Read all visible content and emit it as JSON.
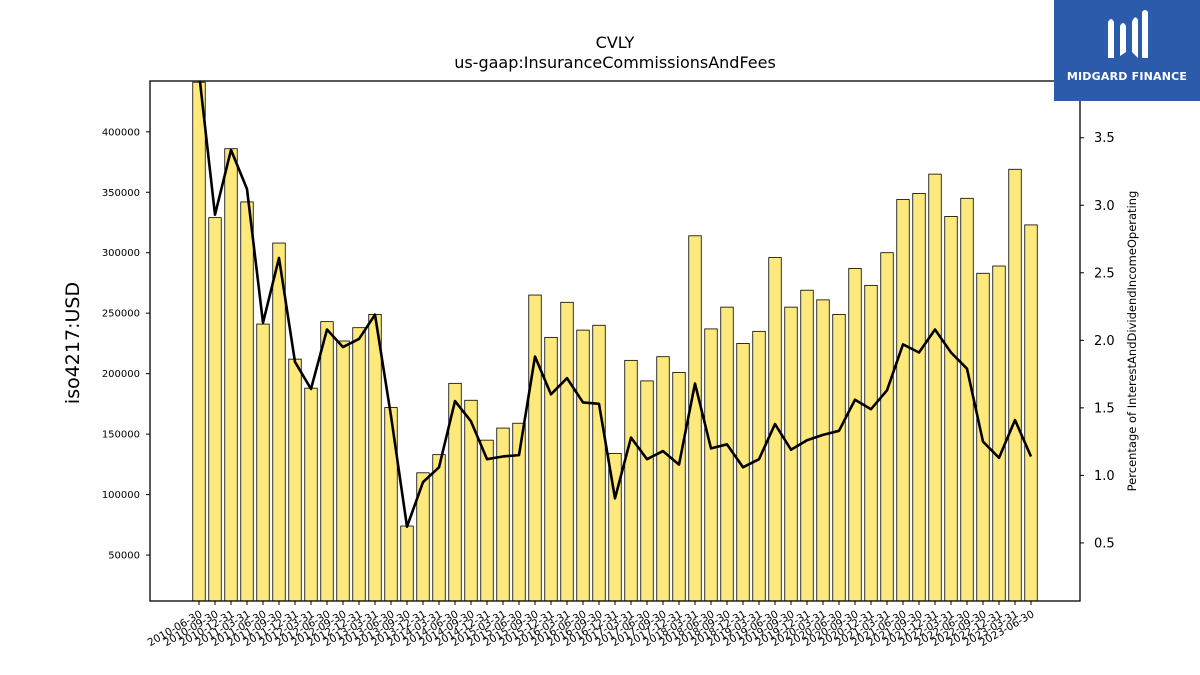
{
  "chart_data": {
    "type": "bar",
    "title": "CVLY",
    "subtitle": "us-gaap:InsuranceCommissionsAndFees",
    "ylabel": "iso4217:USD",
    "y2label": "Percentage of InterestAndDividendIncomeOperating",
    "ylim": [
      12000,
      442000
    ],
    "y2lim": [
      0.07,
      3.92
    ],
    "yticks": [
      50000,
      100000,
      150000,
      200000,
      250000,
      300000,
      350000,
      400000
    ],
    "yticklabels": [
      "50000",
      "100000",
      "150000",
      "200000",
      "250000",
      "300000",
      "350000",
      "400000"
    ],
    "y2ticks": [
      0.5,
      1.0,
      1.5,
      2.0,
      2.5,
      3.0,
      3.5
    ],
    "y2ticklabels": [
      "0.5",
      "1.0",
      "1.5",
      "2.0",
      "2.5",
      "3.0",
      "3.5"
    ],
    "categories": [
      "2010-06-30",
      "2010-09-30",
      "2010-12-31",
      "2011-03-31",
      "2011-06-30",
      "2011-09-30",
      "2011-12-31",
      "2012-03-31",
      "2012-06-30",
      "2012-09-30",
      "2012-12-31",
      "2013-03-31",
      "2013-06-30",
      "2013-09-30",
      "2013-12-31",
      "2014-03-31",
      "2014-06-30",
      "2014-09-30",
      "2014-12-31",
      "2015-03-31",
      "2015-06-30",
      "2015-09-30",
      "2015-12-31",
      "2016-03-31",
      "2016-06-30",
      "2016-09-30",
      "2016-12-31",
      "2017-03-31",
      "2017-06-30",
      "2017-09-30",
      "2017-12-31",
      "2018-03-31",
      "2018-06-30",
      "2018-09-30",
      "2018-12-31",
      "2019-03-31",
      "2019-06-30",
      "2019-09-30",
      "2019-12-31",
      "2020-03-31",
      "2020-06-30",
      "2020-09-30",
      "2020-12-31",
      "2021-03-31",
      "2021-06-30",
      "2021-09-30",
      "2021-12-31",
      "2022-03-31",
      "2022-06-30",
      "2022-09-30",
      "2022-12-31",
      "2023-03-31",
      "2023-06-30"
    ],
    "series": [
      {
        "type": "bar",
        "axis": "left",
        "color": "#ffe97a",
        "values": [
          441000,
          329000,
          386000,
          342000,
          241000,
          308000,
          212000,
          188000,
          243000,
          227000,
          238000,
          249000,
          172000,
          74000,
          118000,
          133000,
          192000,
          178000,
          145000,
          155000,
          159000,
          265000,
          230000,
          259000,
          236000,
          240000,
          134000,
          211000,
          194000,
          214000,
          201000,
          314000,
          237000,
          255000,
          225000,
          235000,
          296000,
          255000,
          269000,
          261000,
          249000,
          287000,
          273000,
          300000,
          344000,
          349000,
          365000,
          330000,
          345000,
          283000,
          289000,
          369000,
          323000
        ]
      },
      {
        "type": "line",
        "axis": "right",
        "color": "#000000",
        "values": [
          3.98,
          2.93,
          3.41,
          3.12,
          2.13,
          2.61,
          1.84,
          1.64,
          2.08,
          1.95,
          2.01,
          2.19,
          1.44,
          0.62,
          0.95,
          1.06,
          1.55,
          1.4,
          1.12,
          1.14,
          1.15,
          1.88,
          1.6,
          1.72,
          1.54,
          1.53,
          0.83,
          1.28,
          1.12,
          1.18,
          1.08,
          1.68,
          1.2,
          1.23,
          1.06,
          1.12,
          1.38,
          1.19,
          1.26,
          1.3,
          1.33,
          1.56,
          1.49,
          1.63,
          1.97,
          1.91,
          2.08,
          1.91,
          1.79,
          1.25,
          1.13,
          1.41,
          1.14
        ]
      }
    ]
  },
  "logo": {
    "text": "MIDGARD FINANCE",
    "color": "#2d5bab"
  }
}
